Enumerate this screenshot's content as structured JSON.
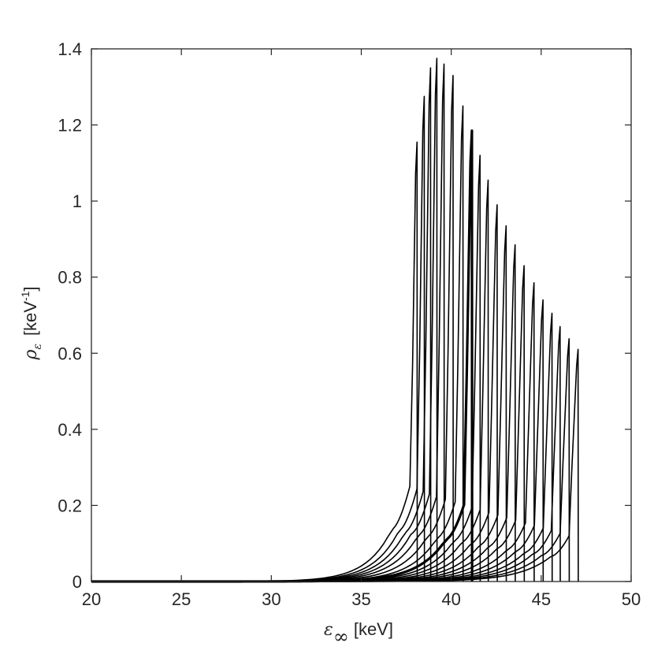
{
  "chart_data": {
    "type": "line",
    "xlabel": {
      "symbol": "ε",
      "subscript": "∞",
      "unit": "[keV]"
    },
    "ylabel": {
      "symbol": "ρ",
      "subscript": "ε",
      "unit": "[keV",
      "unit_sup": "-1",
      "unit_end": "]"
    },
    "xlim": [
      20,
      50
    ],
    "ylim": [
      0,
      1.4
    ],
    "xticks": [
      20,
      25,
      30,
      35,
      40,
      45,
      50
    ],
    "xtick_labels": [
      "20",
      "25",
      "30",
      "35",
      "40",
      "45",
      "50"
    ],
    "yticks": [
      0,
      0.2,
      0.4,
      0.6,
      0.8,
      1.0,
      1.2,
      1.4
    ],
    "ytick_labels": [
      "0",
      "0.2",
      "0.4",
      "0.6",
      "0.8",
      "1",
      "1.2",
      "1.4"
    ],
    "grid": false,
    "line_color": "#000000",
    "highlighted_series_index": 7,
    "series": [
      {
        "peak_x": 38.1,
        "peak_y": 1.155
      },
      {
        "peak_x": 38.5,
        "peak_y": 1.275
      },
      {
        "peak_x": 38.85,
        "peak_y": 1.35
      },
      {
        "peak_x": 39.2,
        "peak_y": 1.375
      },
      {
        "peak_x": 39.6,
        "peak_y": 1.36
      },
      {
        "peak_x": 40.1,
        "peak_y": 1.33
      },
      {
        "peak_x": 40.65,
        "peak_y": 1.25
      },
      {
        "peak_x": 41.15,
        "peak_y": 1.185
      },
      {
        "peak_x": 41.6,
        "peak_y": 1.12
      },
      {
        "peak_x": 42.05,
        "peak_y": 1.055
      },
      {
        "peak_x": 42.55,
        "peak_y": 0.99
      },
      {
        "peak_x": 43.05,
        "peak_y": 0.935
      },
      {
        "peak_x": 43.55,
        "peak_y": 0.885
      },
      {
        "peak_x": 44.05,
        "peak_y": 0.83
      },
      {
        "peak_x": 44.6,
        "peak_y": 0.785
      },
      {
        "peak_x": 45.1,
        "peak_y": 0.74
      },
      {
        "peak_x": 45.6,
        "peak_y": 0.705
      },
      {
        "peak_x": 46.05,
        "peak_y": 0.67
      },
      {
        "peak_x": 46.55,
        "peak_y": 0.638
      },
      {
        "peak_x": 47.05,
        "peak_y": 0.61
      }
    ]
  }
}
